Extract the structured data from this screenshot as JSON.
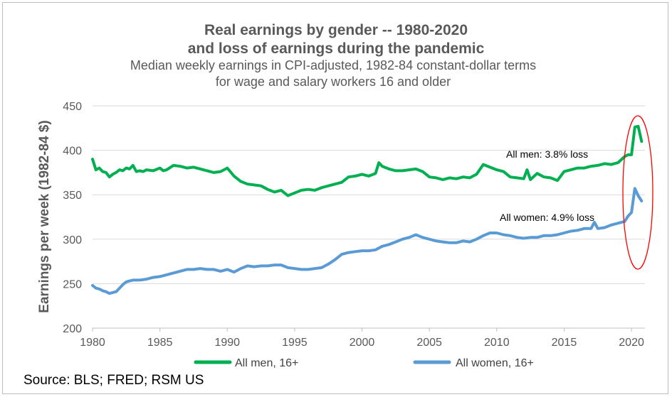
{
  "chart_data": {
    "type": "line",
    "title": "Real earnings by gender -- 1980-2020",
    "title_line2": "and loss of earnings during the pandemic",
    "subtitle": "Median weekly earnings in CPI-adjusted, 1982-84 constant-dollar terms",
    "subtitle_line2": "for wage and salary workers 16 and older",
    "xlabel": "",
    "ylabel": "Earnings per  week (1982-84 $)",
    "xlim": [
      1980,
      2021
    ],
    "ylim": [
      200,
      450
    ],
    "y_ticks": [
      200,
      250,
      300,
      350,
      400,
      450
    ],
    "x_ticks": [
      1980,
      1985,
      1990,
      1995,
      2000,
      2005,
      2010,
      2015,
      2020
    ],
    "grid": "horizontal",
    "legend_position": "bottom",
    "series": [
      {
        "name": "All men, 16+",
        "color": "#00b050",
        "x": [
          1980,
          1980.25,
          1980.5,
          1980.75,
          1981,
          1981.25,
          1981.5,
          1981.75,
          1982,
          1982.25,
          1982.5,
          1982.75,
          1983,
          1983.25,
          1983.5,
          1983.75,
          1984,
          1984.5,
          1985,
          1985.25,
          1985.5,
          1986,
          1986.5,
          1987,
          1987.5,
          1988,
          1988.5,
          1989,
          1989.5,
          1990,
          1990.5,
          1991,
          1991.5,
          1992,
          1992.5,
          1993,
          1993.5,
          1994,
          1994.25,
          1994.5,
          1995,
          1995.5,
          1996,
          1996.5,
          1997,
          1997.5,
          1998,
          1998.5,
          1999,
          1999.5,
          2000,
          2000.5,
          2001,
          2001.25,
          2001.5,
          2002,
          2002.5,
          2003,
          2003.5,
          2004,
          2004.5,
          2005,
          2005.5,
          2006,
          2006.5,
          2007,
          2007.5,
          2008,
          2008.5,
          2009,
          2009.5,
          2010,
          2010.5,
          2011,
          2011.5,
          2012,
          2012.25,
          2012.5,
          2013,
          2013.5,
          2014,
          2014.5,
          2015,
          2015.5,
          2016,
          2016.5,
          2017,
          2017.5,
          2018,
          2018.5,
          2019,
          2019.5,
          2019.75,
          2020,
          2020.25,
          2020.5,
          2020.75
        ],
        "values": [
          390,
          378,
          380,
          376,
          375,
          370,
          373,
          375,
          378,
          377,
          380,
          379,
          383,
          376,
          377,
          376,
          378,
          377,
          380,
          377,
          378,
          383,
          382,
          380,
          381,
          379,
          377,
          375,
          376,
          380,
          371,
          365,
          362,
          361,
          360,
          356,
          353,
          355,
          352,
          349,
          352,
          355,
          356,
          355,
          358,
          360,
          362,
          364,
          370,
          371,
          373,
          371,
          374,
          386,
          382,
          379,
          377,
          377,
          378,
          379,
          376,
          370,
          369,
          367,
          369,
          368,
          370,
          369,
          373,
          384,
          381,
          378,
          376,
          370,
          369,
          368,
          378,
          367,
          374,
          370,
          369,
          366,
          376,
          378,
          380,
          380,
          382,
          383,
          385,
          384,
          386,
          393,
          395,
          395,
          426,
          427,
          410
        ]
      },
      {
        "name": "All women, 16+",
        "color": "#5b9bd5",
        "x": [
          1980,
          1980.25,
          1980.5,
          1980.75,
          1981,
          1981.25,
          1981.5,
          1981.75,
          1982,
          1982.25,
          1982.5,
          1982.75,
          1983,
          1983.5,
          1984,
          1984.5,
          1985,
          1985.5,
          1986,
          1986.5,
          1987,
          1987.5,
          1988,
          1988.5,
          1989,
          1989.5,
          1990,
          1990.5,
          1991,
          1991.5,
          1992,
          1992.5,
          1993,
          1993.5,
          1994,
          1994.5,
          1995,
          1995.5,
          1996,
          1996.5,
          1997,
          1997.5,
          1998,
          1998.5,
          1999,
          1999.5,
          2000,
          2000.5,
          2001,
          2001.5,
          2002,
          2002.5,
          2003,
          2003.5,
          2004,
          2004.5,
          2005,
          2005.5,
          2006,
          2006.5,
          2007,
          2007.5,
          2008,
          2008.5,
          2009,
          2009.5,
          2010,
          2010.5,
          2011,
          2011.5,
          2012,
          2012.5,
          2013,
          2013.5,
          2014,
          2014.5,
          2015,
          2015.5,
          2016,
          2016.5,
          2017,
          2017.25,
          2017.5,
          2018,
          2018.5,
          2019,
          2019.5,
          2019.75,
          2020,
          2020.25,
          2020.5,
          2020.75
        ],
        "values": [
          248,
          245,
          244,
          242,
          241,
          239,
          240,
          241,
          245,
          249,
          252,
          253,
          254,
          254,
          255,
          257,
          258,
          260,
          262,
          264,
          266,
          266,
          267,
          266,
          266,
          264,
          266,
          263,
          267,
          270,
          269,
          270,
          270,
          271,
          271,
          268,
          267,
          266,
          266,
          267,
          268,
          272,
          277,
          283,
          285,
          286,
          287,
          287,
          288,
          292,
          294,
          297,
          300,
          302,
          305,
          302,
          300,
          298,
          297,
          296,
          296,
          298,
          297,
          300,
          304,
          307,
          307,
          305,
          304,
          302,
          301,
          302,
          302,
          304,
          304,
          305,
          307,
          309,
          310,
          312,
          312,
          319,
          312,
          313,
          316,
          318,
          320,
          326,
          330,
          357,
          349,
          343
        ]
      }
    ],
    "annotations": [
      "All men: 3.8% loss",
      "All women: 4.9% loss"
    ]
  },
  "source": "Source: BLS; FRED; RSM US",
  "highlight_ellipse_color": "#ff0000"
}
